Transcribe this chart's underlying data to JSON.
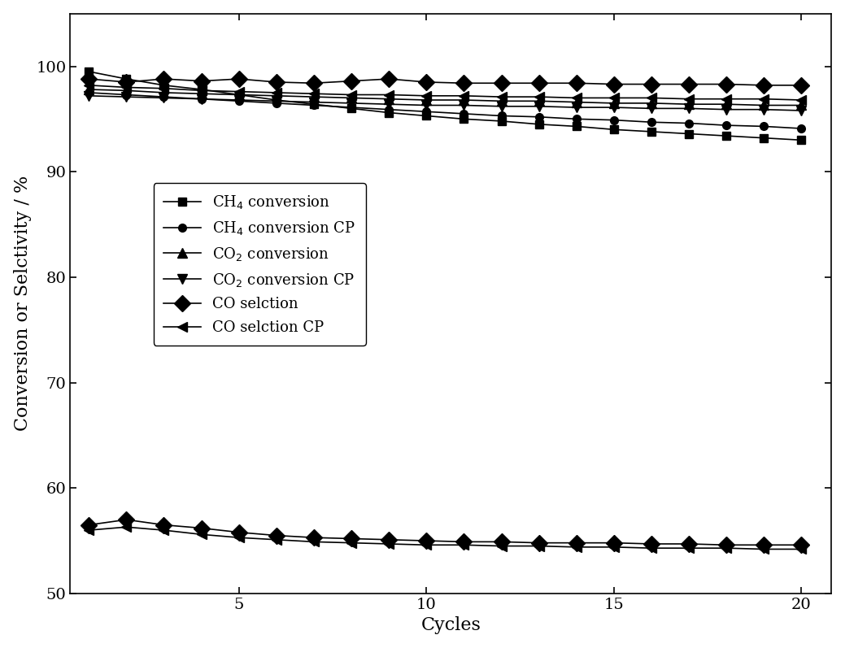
{
  "cycles": [
    1,
    2,
    3,
    4,
    5,
    6,
    7,
    8,
    9,
    10,
    11,
    12,
    13,
    14,
    15,
    16,
    17,
    18,
    19,
    20
  ],
  "CH4_conversion": [
    99.5,
    98.8,
    98.2,
    97.8,
    97.3,
    96.8,
    96.4,
    96.0,
    95.6,
    95.3,
    95.0,
    94.8,
    94.5,
    94.3,
    94.0,
    93.8,
    93.6,
    93.4,
    93.2,
    93.0
  ],
  "CH4_conversion_CP": [
    97.5,
    97.3,
    97.1,
    96.9,
    96.7,
    96.5,
    96.3,
    96.1,
    95.9,
    95.7,
    95.5,
    95.3,
    95.2,
    95.0,
    94.9,
    94.7,
    94.6,
    94.4,
    94.3,
    94.1
  ],
  "CO2_conversion": [
    97.8,
    97.7,
    97.5,
    97.4,
    97.3,
    97.2,
    97.1,
    97.0,
    96.9,
    96.8,
    96.8,
    96.7,
    96.7,
    96.6,
    96.5,
    96.5,
    96.4,
    96.4,
    96.3,
    96.3
  ],
  "CO2_conversion_CP": [
    97.2,
    97.1,
    97.0,
    96.9,
    96.8,
    96.7,
    96.6,
    96.5,
    96.4,
    96.3,
    96.3,
    96.2,
    96.2,
    96.1,
    96.1,
    96.0,
    96.0,
    95.9,
    95.9,
    95.8
  ],
  "CO_selection": [
    98.8,
    98.5,
    98.8,
    98.6,
    98.8,
    98.5,
    98.4,
    98.6,
    98.8,
    98.5,
    98.4,
    98.4,
    98.4,
    98.4,
    98.3,
    98.3,
    98.3,
    98.3,
    98.2,
    98.2
  ],
  "CO_selection_CP": [
    98.2,
    98.0,
    97.9,
    97.7,
    97.6,
    97.5,
    97.4,
    97.3,
    97.3,
    97.2,
    97.2,
    97.1,
    97.1,
    97.0,
    97.0,
    97.0,
    96.9,
    96.9,
    96.9,
    96.8
  ],
  "H2CO_ratio": [
    56.5,
    57.0,
    56.5,
    56.2,
    55.8,
    55.5,
    55.3,
    55.2,
    55.1,
    55.0,
    54.9,
    54.9,
    54.8,
    54.8,
    54.8,
    54.7,
    54.7,
    54.6,
    54.6,
    54.6
  ],
  "H2CO_ratio_CP": [
    56.0,
    56.3,
    56.0,
    55.6,
    55.3,
    55.1,
    54.9,
    54.8,
    54.7,
    54.6,
    54.6,
    54.5,
    54.5,
    54.4,
    54.4,
    54.3,
    54.3,
    54.3,
    54.2,
    54.2
  ],
  "ylabel": "Conversion or Selctivity / %",
  "xlabel": "Cycles",
  "ylim": [
    50,
    105
  ],
  "yticks": [
    50,
    60,
    70,
    80,
    90,
    100
  ],
  "xticks": [
    5,
    10,
    15,
    20
  ],
  "legend_labels": [
    "CH$_4$ conversion",
    "CH$_4$ conversion CP",
    "CO$_2$ conversion",
    "CO$_2$ conversion CP",
    "CO selction",
    "CO selction CP"
  ],
  "color": "#000000",
  "linewidth": 1.2,
  "background": "#ffffff"
}
